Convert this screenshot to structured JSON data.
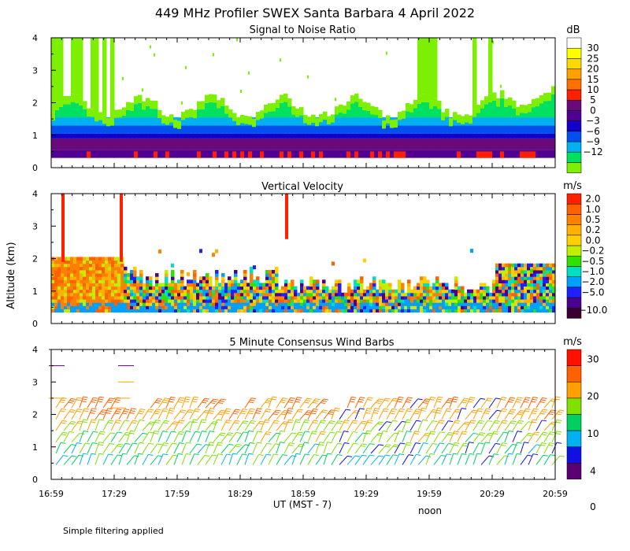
{
  "title": "449 MHz Profiler SWEX Santa Barbara  4 April 2022",
  "ylabel": "Altitude (km)",
  "xlabel": "UT  (MST - 7)",
  "noon_label": "noon",
  "footer_note": "Simple filtering applied",
  "x_ticks": [
    "16:59",
    "17:29",
    "17:59",
    "18:29",
    "18:59",
    "19:29",
    "19:59",
    "20:29",
    "20:59"
  ],
  "y_ticks": [
    "0",
    "1",
    "2",
    "3",
    "4"
  ],
  "colors": {
    "snr": [
      "#7cf000",
      "#00e060",
      "#00b0f0",
      "#0050f0",
      "#1000c8",
      "#500090",
      "#6a0a7a",
      "#ff2000",
      "#ff7000",
      "#ffa000",
      "#ffd800",
      "#ffff00",
      "#ffffff"
    ],
    "vv": [
      "#3a0030",
      "#4a0090",
      "#2020ff",
      "#00a0ff",
      "#00e0c0",
      "#30e000",
      "#c0f000",
      "#ffd000",
      "#ffb000",
      "#ff8000",
      "#ff6000",
      "#ff2000"
    ],
    "wind": [
      "#5a0070",
      "#1010e0",
      "#00b0f0",
      "#00d060",
      "#80e000",
      "#ffa000",
      "#ff6000",
      "#ff1000"
    ]
  },
  "chart_data": [
    {
      "type": "heatmap",
      "title": "Signal to Noise Ratio",
      "units": "dB",
      "ylim": [
        0,
        4
      ],
      "colorbar_labels": [
        "30",
        "25",
        "20",
        "15",
        "10",
        "5",
        "0",
        "−3",
        "−6",
        "−9",
        "−12"
      ],
      "description_profile": [
        {
          "altitude_km": 0.4,
          "snr_db": 6
        },
        {
          "altitude_km": 0.8,
          "snr_db": 3
        },
        {
          "altitude_km": 1.2,
          "snr_db": -3
        },
        {
          "altitude_km": 1.6,
          "snr_db": -9
        },
        {
          "altitude_km": 2.0,
          "snr_db": -12
        }
      ]
    },
    {
      "type": "heatmap",
      "title": "Vertical Velocity",
      "units": "m/s",
      "ylim": [
        0,
        4
      ],
      "colorbar_labels": [
        "2.0",
        "1.0",
        "0.5",
        "0.2",
        "0.0",
        "−0.2",
        "−0.5",
        "−1.0",
        "−2.0",
        "−5.0",
        "−10.0"
      ]
    },
    {
      "type": "scatter",
      "title": "5 Minute Consensus Wind Barbs",
      "units": "m/s",
      "ylim": [
        0,
        4
      ],
      "colorbar_labels": [
        "30",
        "20",
        "10",
        "4",
        "0"
      ],
      "barb_speed_by_altitude_km": [
        {
          "altitude_km": 0.5,
          "speed_ms": 8
        },
        {
          "altitude_km": 1.0,
          "speed_ms": 10
        },
        {
          "altitude_km": 1.5,
          "speed_ms": 12
        },
        {
          "altitude_km": 2.0,
          "speed_ms": 15
        },
        {
          "altitude_km": 2.5,
          "speed_ms": 20
        },
        {
          "altitude_km": 3.0,
          "speed_ms": 22
        }
      ]
    }
  ]
}
